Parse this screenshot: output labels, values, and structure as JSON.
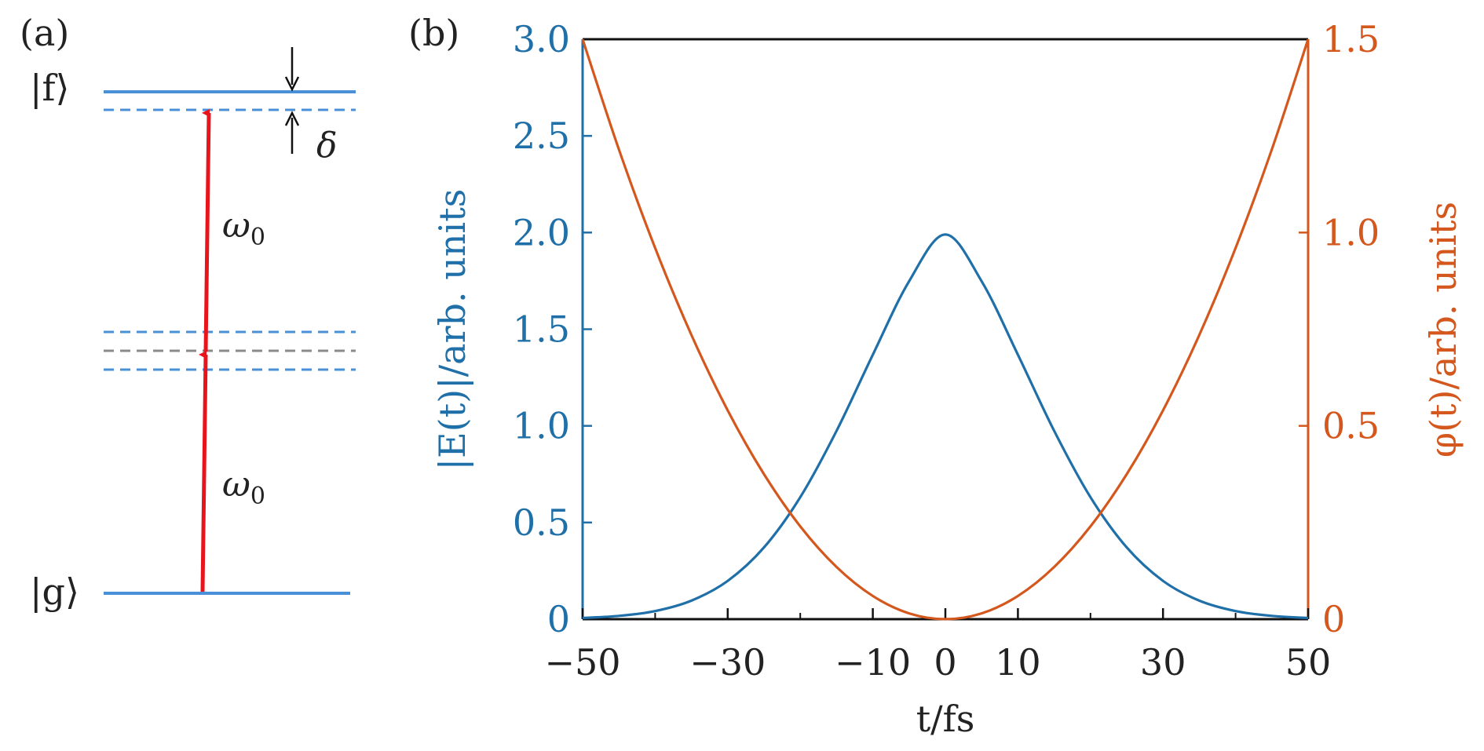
{
  "panel_a": {
    "label": "(a)",
    "state_f": "|f⟩",
    "state_g": "|g⟩",
    "omega_upper": "ω",
    "omega_upper_sub": "0",
    "omega_lower": "ω",
    "omega_lower_sub": "0",
    "detuning": "δ"
  },
  "panel_b": {
    "label": "(b)"
  },
  "chart_data": {
    "type": "line",
    "x_label": "t/fs",
    "y_label_left": "|E(t)|/arb. units",
    "y_label_right": "φ(t)/arb. units",
    "xlim": [
      -50,
      50
    ],
    "ylim_left": [
      0,
      3.0
    ],
    "ylim_right": [
      0,
      1.5
    ],
    "x_tick_labels": [
      "−50",
      "−30",
      "−10",
      "0",
      "10",
      "30",
      "50"
    ],
    "x_tick_values": [
      -50,
      -30,
      -10,
      0,
      10,
      30,
      50
    ],
    "x_minor_ticks": [
      -40,
      -20,
      20,
      40
    ],
    "y_left_tick_labels": [
      "0",
      "0.5",
      "1.0",
      "1.5",
      "2.0",
      "2.5",
      "3.0"
    ],
    "y_left_tick_values": [
      0,
      0.5,
      1.0,
      1.5,
      2.0,
      2.5,
      3.0
    ],
    "y_right_tick_labels": [
      "0",
      "0.5",
      "1.0",
      "1.5"
    ],
    "y_right_tick_values": [
      0,
      0.5,
      1.0,
      1.5
    ],
    "series": [
      {
        "axis": "left",
        "color": "#1f6fa8",
        "x": [
          -50,
          -45,
          -40,
          -35,
          -30,
          -25,
          -20,
          -15,
          -10,
          -5,
          0,
          5,
          10,
          15,
          20,
          25,
          30,
          35,
          40,
          45,
          50
        ],
        "y": [
          0.006,
          0.017,
          0.042,
          0.096,
          0.198,
          0.371,
          0.631,
          0.974,
          1.368,
          1.748,
          1.99,
          1.748,
          1.368,
          0.974,
          0.631,
          0.371,
          0.198,
          0.096,
          0.042,
          0.017,
          0.006
        ]
      },
      {
        "axis": "right",
        "color": "#d4581e",
        "x": [
          -50,
          -45,
          -40,
          -35,
          -30,
          -25,
          -20,
          -15,
          -10,
          -5,
          0,
          5,
          10,
          15,
          20,
          25,
          30,
          35,
          40,
          45,
          50
        ],
        "y": [
          1.5,
          1.215,
          0.96,
          0.735,
          0.54,
          0.375,
          0.24,
          0.135,
          0.06,
          0.015,
          0,
          0.015,
          0.06,
          0.135,
          0.24,
          0.375,
          0.54,
          0.735,
          0.96,
          1.215,
          1.5
        ]
      }
    ]
  },
  "colors": {
    "blue": "#1f6fa8",
    "orange": "#d4581e",
    "level_blue": "#4a90d9",
    "level_gray": "#8a8a8a",
    "arrow_red": "#e8141c"
  }
}
